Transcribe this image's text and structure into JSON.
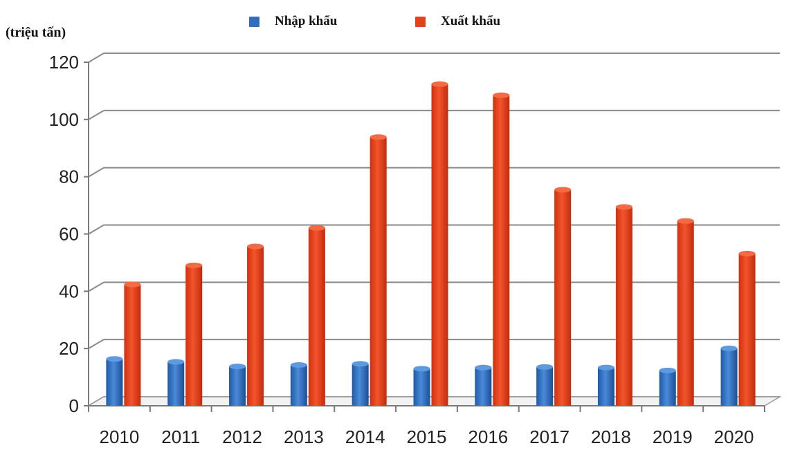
{
  "chart_data": {
    "type": "bar",
    "title": "",
    "ylabel": "(triệu tấn)",
    "xlabel": "",
    "ylim": [
      0,
      120
    ],
    "yticks": [
      0,
      20,
      40,
      60,
      80,
      100,
      120
    ],
    "categories": [
      "2010",
      "2011",
      "2012",
      "2013",
      "2014",
      "2015",
      "2016",
      "2017",
      "2018",
      "2019",
      "2020"
    ],
    "series": [
      {
        "name": "Nhập khẩu",
        "color": "#2f6fbe",
        "values": [
          16.6,
          15.6,
          14.0,
          14.5,
          14.9,
          13.2,
          13.6,
          13.8,
          13.6,
          12.6,
          20.3
        ]
      },
      {
        "name": "Xuất khẩu",
        "color": "#e8401c",
        "values": [
          42.6,
          49.3,
          55.9,
          62.4,
          94.1,
          112.6,
          108.7,
          75.7,
          69.7,
          64.8,
          53.4
        ]
      }
    ],
    "grid": true,
    "legend": "top-center"
  }
}
